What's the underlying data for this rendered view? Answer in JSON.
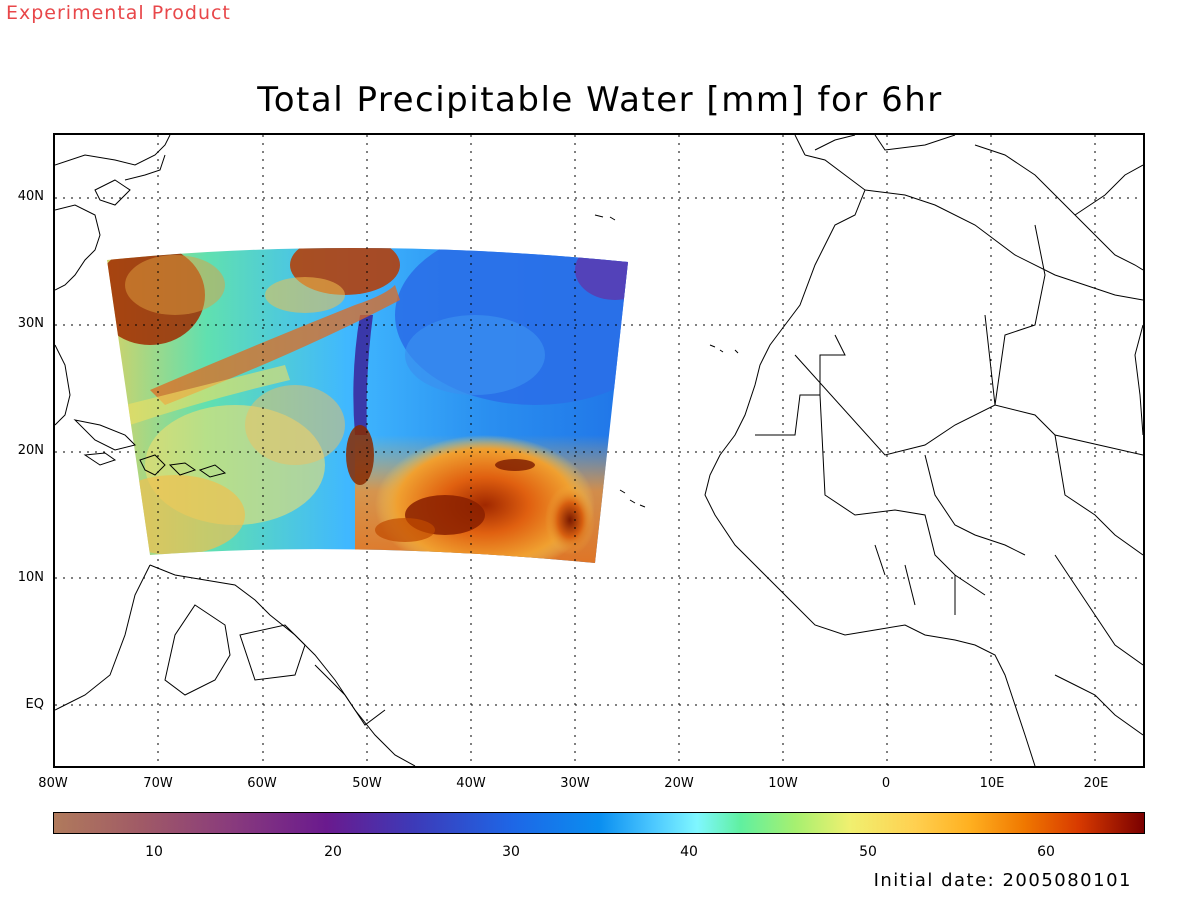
{
  "product_label": "Experimental Product",
  "title": "Total Precipitable Water [mm] for 6hr",
  "initial_date": "Initial date: 2005080101",
  "map": {
    "lat_labels": [
      "40N",
      "30N",
      "20N",
      "10N",
      "EQ"
    ],
    "lon_labels": [
      "80W",
      "70W",
      "60W",
      "50W",
      "40W",
      "30W",
      "20W",
      "10W",
      "0",
      "10E",
      "20E"
    ],
    "gridlines": "dotted"
  },
  "colorbar": {
    "labels": [
      "10",
      "20",
      "30",
      "40",
      "50",
      "60"
    ],
    "colors": [
      "#b07a5c",
      "#8a3c7c",
      "#3d3ab8",
      "#0a8ef0",
      "#7ff7ff",
      "#a6f070",
      "#f0f070",
      "#ffb020",
      "#d83a00",
      "#7a0000"
    ]
  }
}
